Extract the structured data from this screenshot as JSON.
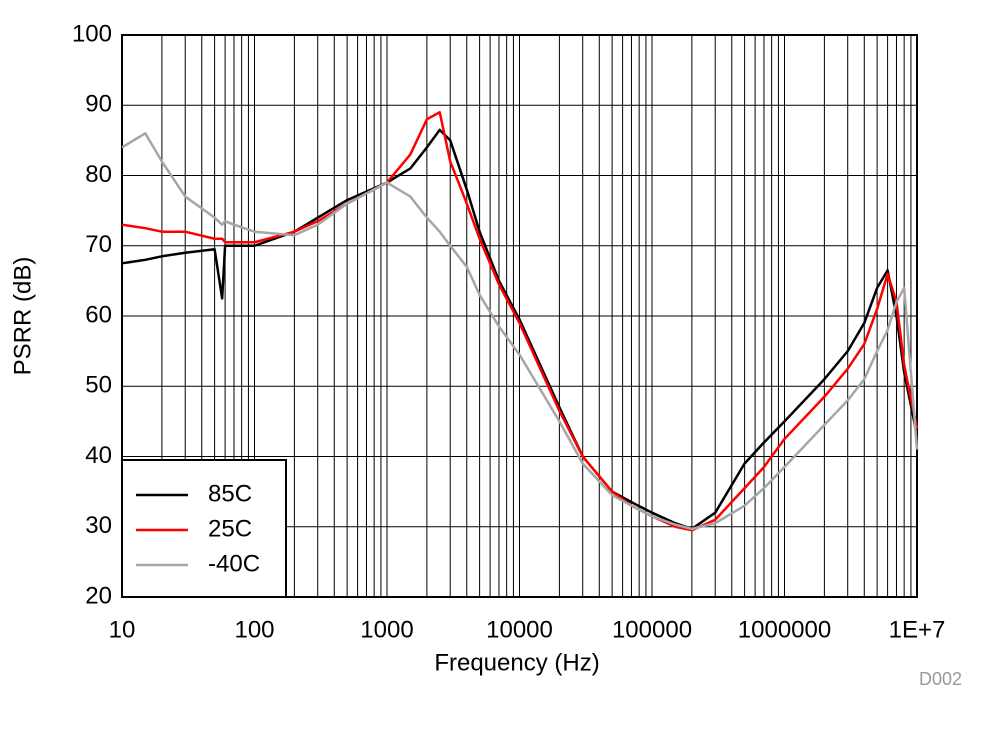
{
  "chart_data": {
    "type": "line",
    "xlabel": "Frequency (Hz)",
    "ylabel": "PSRR (dB)",
    "annotation": "D002",
    "x": [
      10,
      15,
      20,
      30,
      50,
      57,
      60,
      70,
      100,
      200,
      300,
      500,
      1000,
      1500,
      2000,
      2500,
      3000,
      4000,
      5000,
      7000,
      10000,
      20000,
      30000,
      50000,
      70000,
      100000,
      150000,
      200000,
      300000,
      500000,
      700000,
      1000000,
      2000000,
      3000000,
      4000000,
      5000000,
      6000000,
      7000000,
      8000000,
      10000000
    ],
    "series": [
      {
        "name": "85C",
        "color": "#000000",
        "values": [
          67.5,
          68,
          68.5,
          69,
          69.5,
          62.5,
          70,
          70,
          70,
          72,
          74,
          76.5,
          79,
          81,
          84,
          86.5,
          85,
          78,
          72,
          65,
          59.5,
          47,
          40,
          35,
          33.5,
          32,
          30.5,
          29.7,
          32,
          39,
          42,
          45,
          51,
          55,
          59,
          64,
          66.5,
          60,
          52,
          43
        ]
      },
      {
        "name": "25C",
        "color": "#ff0000",
        "values": [
          73,
          72.5,
          72,
          72,
          71,
          71,
          70.5,
          70.5,
          70.5,
          72,
          73.5,
          76,
          79,
          83,
          88,
          89,
          82,
          76,
          71,
          64.5,
          59,
          46.5,
          40,
          35,
          33,
          31.5,
          30,
          29.5,
          31,
          35.5,
          38.5,
          42.5,
          48.5,
          52.5,
          56,
          61,
          66,
          62,
          53,
          44
        ]
      },
      {
        "name": "-40C",
        "color": "#a6a6a6",
        "values": [
          84,
          86,
          82,
          77,
          74,
          73,
          73.5,
          73,
          72,
          71.5,
          73,
          76,
          79,
          77,
          74,
          72,
          70,
          67,
          63,
          58.5,
          54.5,
          45,
          39,
          34.5,
          33,
          31.5,
          30.3,
          29.7,
          30.5,
          33,
          35.5,
          38.5,
          44.5,
          48,
          51,
          55,
          58,
          62,
          64,
          41
        ]
      }
    ],
    "xscale": "log",
    "xlim": [
      10,
      10000000
    ],
    "xticks": [
      10,
      100,
      1000,
      10000,
      100000,
      1000000,
      {
        "value": 10000000,
        "label": "1E+7"
      }
    ],
    "ylim": [
      20,
      100
    ],
    "yticks": [
      20,
      30,
      40,
      50,
      60,
      70,
      80,
      90,
      100
    ],
    "grid": true,
    "legend": "lower left"
  }
}
